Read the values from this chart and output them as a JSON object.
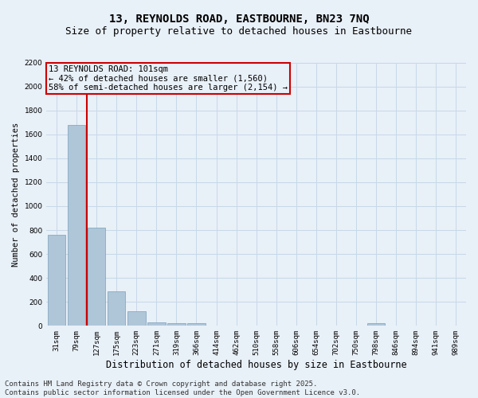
{
  "title": "13, REYNOLDS ROAD, EASTBOURNE, BN23 7NQ",
  "subtitle": "Size of property relative to detached houses in Eastbourne",
  "xlabel": "Distribution of detached houses by size in Eastbourne",
  "ylabel": "Number of detached properties",
  "categories": [
    "31sqm",
    "79sqm",
    "127sqm",
    "175sqm",
    "223sqm",
    "271sqm",
    "319sqm",
    "366sqm",
    "414sqm",
    "462sqm",
    "510sqm",
    "558sqm",
    "606sqm",
    "654sqm",
    "702sqm",
    "750sqm",
    "798sqm",
    "846sqm",
    "894sqm",
    "941sqm",
    "989sqm"
  ],
  "values": [
    760,
    1680,
    820,
    290,
    120,
    30,
    25,
    20,
    0,
    0,
    0,
    0,
    0,
    0,
    0,
    0,
    25,
    0,
    0,
    0,
    0
  ],
  "bar_color": "#aec6d8",
  "bar_edge_color": "#7aa0bb",
  "grid_color": "#c8d8e8",
  "background_color": "#e8f0f8",
  "annotation_box_text": "13 REYNOLDS ROAD: 101sqm\n← 42% of detached houses are smaller (1,560)\n58% of semi-detached houses are larger (2,154) →",
  "annotation_box_color": "#cc0000",
  "red_line_color": "#cc0000",
  "red_line_x": 1.5,
  "ylim": [
    0,
    2200
  ],
  "yticks": [
    0,
    200,
    400,
    600,
    800,
    1000,
    1200,
    1400,
    1600,
    1800,
    2000,
    2200
  ],
  "footnote": "Contains HM Land Registry data © Crown copyright and database right 2025.\nContains public sector information licensed under the Open Government Licence v3.0.",
  "title_fontsize": 10,
  "subtitle_fontsize": 9,
  "xlabel_fontsize": 8.5,
  "ylabel_fontsize": 7.5,
  "tick_fontsize": 6.5,
  "annotation_fontsize": 7.5,
  "footnote_fontsize": 6.5
}
